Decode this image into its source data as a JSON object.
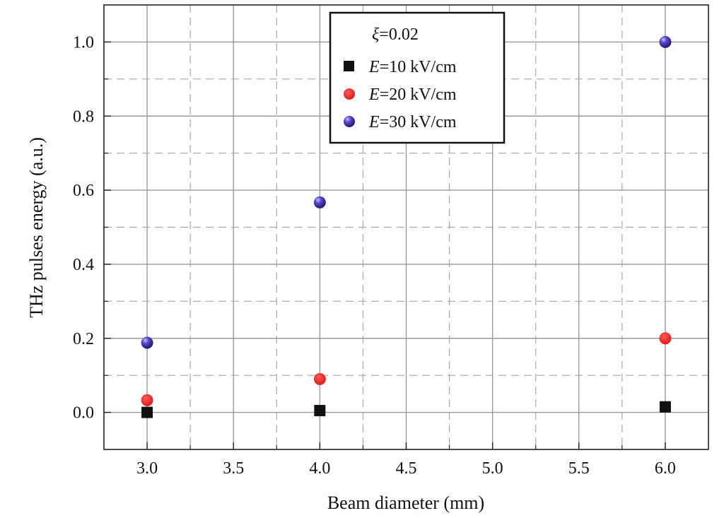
{
  "chart_data": {
    "type": "scatter",
    "xlabel": "Beam diameter (mm)",
    "ylabel": "THz pulses energy (a.u.)",
    "xlim": [
      2.75,
      6.25
    ],
    "ylim": [
      -0.1,
      1.1
    ],
    "xticks": [
      "3.0",
      "3.5",
      "4.0",
      "4.5",
      "5.0",
      "5.5",
      "6.0"
    ],
    "yticks": [
      "0.0",
      "0.2",
      "0.4",
      "0.6",
      "0.8",
      "1.0"
    ],
    "grid": true,
    "legend_position": "top-center",
    "legend_title": {
      "symbol": "ξ",
      "text": "=0.02"
    },
    "series": [
      {
        "name": {
          "var": "E",
          "rest": "=10 kV/cm"
        },
        "marker": "square",
        "color": "#111111",
        "x": [
          3.0,
          4.0,
          6.0
        ],
        "y": [
          0.0,
          0.005,
          0.015
        ]
      },
      {
        "name": {
          "var": "E",
          "rest": "=20 kV/cm"
        },
        "marker": "circle",
        "color": "#e8231f",
        "x": [
          3.0,
          4.0,
          6.0
        ],
        "y": [
          0.033,
          0.09,
          0.2
        ]
      },
      {
        "name": {
          "var": "E",
          "rest": "=30 kV/cm"
        },
        "marker": "sphere",
        "color": "#3a2aa6",
        "x": [
          3.0,
          4.0,
          6.0
        ],
        "y": [
          0.188,
          0.567,
          1.0
        ]
      }
    ]
  }
}
